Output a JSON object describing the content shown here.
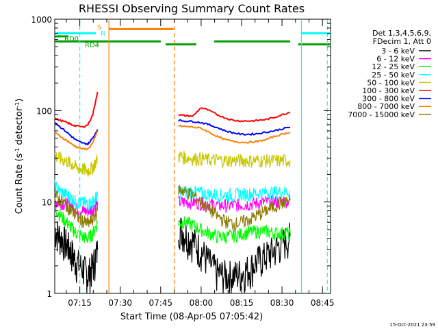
{
  "chart_data": {
    "type": "line",
    "title": "RHESSI Observing Summary Count Rates",
    "xlabel": "Start Time (08-Apr-05 07:05:42)",
    "ylabel": "Count Rate (s-1 detector-1)",
    "ylabel_parts": {
      "main": "Count Rate (s",
      "sup1": "-1",
      "mid": " detector",
      "sup2": "-1",
      "end": ")"
    },
    "y_scale": "log",
    "ylim": [
      1,
      1000
    ],
    "xlim": [
      7.0952,
      8.8
    ],
    "x_units": "hours UT",
    "y_ticks": [
      {
        "value": 1,
        "label": "1"
      },
      {
        "value": 10,
        "label": "10"
      },
      {
        "value": 100,
        "label": "100"
      },
      {
        "value": 1000,
        "label": "1000"
      }
    ],
    "x_ticks": [
      {
        "value": 7.25,
        "label": "07:15"
      },
      {
        "value": 7.5,
        "label": "07:30"
      },
      {
        "value": 7.75,
        "label": "07:45"
      },
      {
        "value": 8.0,
        "label": "08:00"
      },
      {
        "value": 8.25,
        "label": "08:15"
      },
      {
        "value": 8.5,
        "label": "08:30"
      },
      {
        "value": 8.75,
        "label": "08:45"
      }
    ],
    "legend": {
      "placement": "right",
      "header": [
        "Det 1,3,4,5,6,9,",
        "FDecim 1, Att 0"
      ],
      "entries": [
        {
          "label": "3 - 6 keV",
          "color": "#000000"
        },
        {
          "label": "6 - 12 keV",
          "color": "#ff00ff"
        },
        {
          "label": "12 - 25 keV",
          "color": "#00ff00"
        },
        {
          "label": "25 - 50 keV",
          "color": "#00ffff"
        },
        {
          "label": "50 - 100 keV",
          "color": "#c8c800"
        },
        {
          "label": "100 - 300 keV",
          "color": "#ff0000"
        },
        {
          "label": "300 - 800 keV",
          "color": "#0000ff"
        },
        {
          "label": "800 - 7000 keV",
          "color": "#ff8000"
        },
        {
          "label": "7000 - 15000 keV",
          "color": "#8b7b00"
        }
      ]
    },
    "series": [
      {
        "name": "3 - 6 keV",
        "color": "#000000",
        "style": "noisy-low",
        "segments": [
          {
            "x": [
              7.096,
              7.13,
              7.17,
              7.2,
              7.23,
              7.27,
              7.3,
              7.33,
              7.36
            ],
            "y": [
              5,
              4.2,
              3.5,
              2.8,
              2.2,
              1.9,
              1.6,
              2.0,
              3.0
            ]
          },
          {
            "x": [
              7.86,
              7.9,
              7.95,
              8.0,
              8.05,
              8.1,
              8.15,
              8.2,
              8.25,
              8.3,
              8.35,
              8.4,
              8.45,
              8.5,
              8.55
            ],
            "y": [
              5.5,
              4.5,
              3.8,
              3.0,
              2.2,
              1.7,
              1.6,
              1.6,
              1.7,
              1.9,
              2.3,
              2.6,
              3.0,
              3.6,
              4.2
            ]
          }
        ]
      },
      {
        "name": "6 - 12 keV",
        "color": "#ff00ff",
        "style": "noisy",
        "segments": [
          {
            "x": [
              7.096,
              7.13,
              7.17,
              7.2,
              7.23,
              7.27,
              7.3,
              7.33,
              7.36
            ],
            "y": [
              10,
              10,
              9.5,
              9.2,
              8.6,
              8.0,
              8.0,
              8.5,
              10
            ]
          },
          {
            "x": [
              7.86,
              7.9,
              7.95,
              8.0,
              8.05,
              8.1,
              8.15,
              8.2,
              8.25,
              8.3,
              8.35,
              8.4,
              8.45,
              8.5,
              8.55
            ],
            "y": [
              10,
              10,
              10,
              9.8,
              9.5,
              9.2,
              9.2,
              9.2,
              9.4,
              9.6,
              9.8,
              10,
              10,
              10.2,
              10.4
            ]
          }
        ]
      },
      {
        "name": "12 - 25 keV",
        "color": "#00ff00",
        "style": "noisy",
        "segments": [
          {
            "x": [
              7.096,
              7.13,
              7.17,
              7.2,
              7.23,
              7.27,
              7.3,
              7.33,
              7.36
            ],
            "y": [
              8.5,
              7.2,
              6.0,
              5.2,
              4.6,
              4.2,
              4.0,
              4.5,
              6.0
            ]
          },
          {
            "x": [
              7.86,
              7.9,
              7.95,
              8.0,
              8.05,
              8.1,
              8.15,
              8.2,
              8.25,
              8.3,
              8.35,
              8.4,
              8.45,
              8.5,
              8.55
            ],
            "y": [
              6.0,
              6.0,
              5.6,
              5.0,
              4.6,
              4.2,
              4.2,
              4.3,
              4.5,
              4.7,
              4.8,
              4.8,
              4.6,
              4.6,
              4.6
            ]
          }
        ]
      },
      {
        "name": "25 - 50 keV",
        "color": "#00ffff",
        "style": "noisy",
        "segments": [
          {
            "x": [
              7.096,
              7.13,
              7.17,
              7.2,
              7.23,
              7.27,
              7.3,
              7.33,
              7.36
            ],
            "y": [
              15,
              13,
              12,
              11,
              10,
              9.8,
              9.5,
              10,
              12
            ]
          },
          {
            "x": [
              7.86,
              7.9,
              7.95,
              8.0,
              8.05,
              8.1,
              8.15,
              8.2,
              8.25,
              8.3,
              8.35,
              8.4,
              8.45,
              8.5,
              8.55
            ],
            "y": [
              13,
              13,
              13,
              12.6,
              12.2,
              12,
              12,
              12,
              12.2,
              12.4,
              12.6,
              12.8,
              12.8,
              13,
              13.2
            ]
          }
        ]
      },
      {
        "name": "50 - 100 keV",
        "color": "#c8c800",
        "style": "noisy",
        "segments": [
          {
            "x": [
              7.096,
              7.13,
              7.17,
              7.2,
              7.23,
              7.27,
              7.3,
              7.33,
              7.36
            ],
            "y": [
              32,
              30,
              28,
              26,
              24,
              23,
              22,
              24,
              30
            ]
          },
          {
            "x": [
              7.86,
              7.9,
              7.95,
              8.0,
              8.05,
              8.1,
              8.15,
              8.2,
              8.25,
              8.3,
              8.35,
              8.4,
              8.45,
              8.5,
              8.55
            ],
            "y": [
              32,
              31,
              30,
              30,
              29,
              29,
              28.5,
              28.5,
              28.5,
              28.5,
              28.5,
              28.5,
              28.5,
              28.5,
              28.5
            ]
          }
        ]
      },
      {
        "name": "100 - 300 keV",
        "color": "#ff0000",
        "style": "smooth",
        "segments": [
          {
            "x": [
              7.096,
              7.13,
              7.17,
              7.2,
              7.23,
              7.27,
              7.3,
              7.33,
              7.36
            ],
            "y": [
              82,
              78,
              74,
              70,
              68,
              66,
              70,
              90,
              160
            ]
          },
          {
            "x": [
              7.86,
              7.9,
              7.95,
              8.0,
              8.05,
              8.1,
              8.15,
              8.2,
              8.25,
              8.3,
              8.35,
              8.4,
              8.45,
              8.5,
              8.55
            ],
            "y": [
              90,
              88,
              87,
              108,
              100,
              90,
              83,
              78,
              77,
              77,
              78,
              80,
              84,
              90,
              96
            ]
          }
        ]
      },
      {
        "name": "300 - 800 keV",
        "color": "#0000ff",
        "style": "smooth",
        "segments": [
          {
            "x": [
              7.096,
              7.13,
              7.17,
              7.2,
              7.23,
              7.27,
              7.3,
              7.33,
              7.36
            ],
            "y": [
              75,
              66,
              58,
              52,
              47,
              44,
              43,
              50,
              62
            ]
          },
          {
            "x": [
              7.86,
              7.9,
              7.95,
              8.0,
              8.05,
              8.1,
              8.15,
              8.2,
              8.25,
              8.3,
              8.35,
              8.4,
              8.45,
              8.5,
              8.55
            ],
            "y": [
              78,
              77,
              76,
              74,
              70,
              65,
              60,
              57,
              55,
              55,
              56,
              58,
              60,
              63,
              66
            ]
          }
        ]
      },
      {
        "name": "800 - 7000 keV",
        "color": "#ff8000",
        "style": "smooth",
        "segments": [
          {
            "x": [
              7.096,
              7.13,
              7.17,
              7.2,
              7.23,
              7.27,
              7.3,
              7.33,
              7.36
            ],
            "y": [
              58,
              52,
              47,
              43,
              40,
              38,
              38,
              44,
              60
            ]
          },
          {
            "x": [
              7.86,
              7.9,
              7.95,
              8.0,
              8.05,
              8.1,
              8.15,
              8.2,
              8.25,
              8.3,
              8.35,
              8.4,
              8.45,
              8.5,
              8.55
            ],
            "y": [
              68,
              67,
              66,
              64,
              58,
              52,
              48,
              46,
              45,
              45,
              46,
              48,
              52,
              55,
              58
            ]
          }
        ]
      },
      {
        "name": "7000 - 15000 keV",
        "color": "#8b7b00",
        "style": "noisy",
        "segments": [
          {
            "x": [
              7.096,
              7.13,
              7.17,
              7.2,
              7.23,
              7.27,
              7.3,
              7.33,
              7.36
            ],
            "y": [
              12,
              10.5,
              9.2,
              8.0,
              7.0,
              6.2,
              5.8,
              6.5,
              8.0
            ]
          },
          {
            "x": [
              7.86,
              7.9,
              7.95,
              8.0,
              8.05,
              8.1,
              8.15,
              8.2,
              8.25,
              8.3,
              8.35,
              8.4,
              8.45,
              8.5,
              8.55
            ],
            "y": [
              14,
              13,
              12,
              10,
              8.5,
              7,
              6.2,
              5.8,
              6,
              6.5,
              7.2,
              8,
              9,
              9.8,
              10.5
            ]
          }
        ]
      }
    ],
    "flags": [
      {
        "label": "RD0",
        "color": "#00a000",
        "y": 650,
        "segments": [
          [
            7.096,
            7.18
          ]
        ]
      },
      {
        "label": "RD4",
        "color": "#00a000",
        "y": 570,
        "segments": [
          [
            7.096,
            7.75
          ],
          [
            8.08,
            8.55
          ]
        ]
      },
      {
        "label": "",
        "color": "#00a000",
        "y": 530,
        "segments": [
          [
            7.78,
            7.97
          ],
          [
            8.6,
            8.8
          ]
        ]
      },
      {
        "label": "",
        "color": "#00ffff",
        "y": 700,
        "segments": [
          [
            7.096,
            7.35
          ],
          [
            8.62,
            8.8
          ]
        ]
      },
      {
        "label": "S",
        "color": "#ff8000",
        "y": 780,
        "segments": [
          [
            7.43,
            7.83
          ]
        ]
      },
      {
        "label": "N",
        "color": "#00ffff",
        "y": 700,
        "segments": []
      }
    ],
    "vlines": [
      {
        "x": 7.25,
        "color": "#00ffff",
        "style": "dashed"
      },
      {
        "x": 7.43,
        "color": "#ff8000",
        "style": "solid"
      },
      {
        "x": 7.835,
        "color": "#ff8000",
        "style": "dashed"
      },
      {
        "x": 8.62,
        "color": "#00ffff",
        "style": "solid"
      },
      {
        "x": 8.78,
        "color": "#00ffff",
        "style": "dashed"
      }
    ],
    "grid": false
  },
  "footer": {
    "timestamp": "15-Oct-2021 23:59"
  }
}
